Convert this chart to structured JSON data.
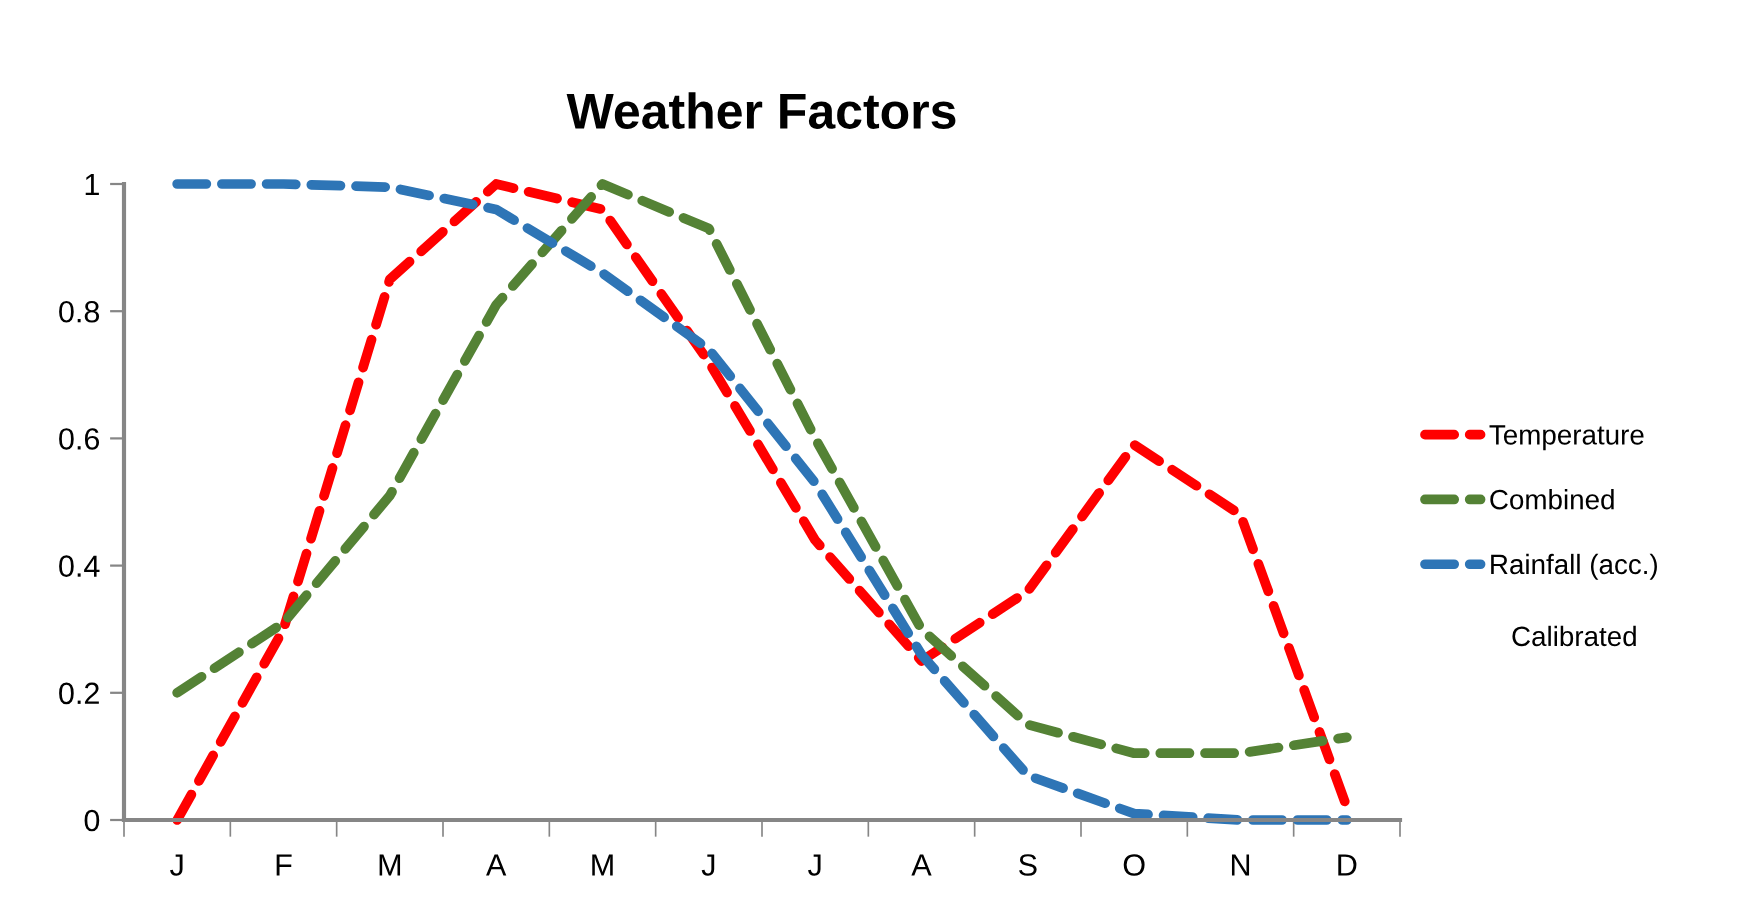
{
  "chart_data": {
    "type": "line",
    "title": "Weather Factors",
    "categories": [
      "J",
      "F",
      "M",
      "A",
      "M",
      "J",
      "J",
      "A",
      "S",
      "O",
      "N",
      "D"
    ],
    "series": [
      {
        "name": "Temperature",
        "color": "#ff0000",
        "values": [
          0,
          0.3,
          0.85,
          1.0,
          0.96,
          0.72,
          0.44,
          0.25,
          0.36,
          0.59,
          0.48,
          0.02
        ]
      },
      {
        "name": "Combined",
        "color": "#548235",
        "values": [
          0.2,
          0.31,
          0.51,
          0.81,
          1.0,
          0.93,
          0.6,
          0.3,
          0.15,
          0.105,
          0.105,
          0.13
        ]
      },
      {
        "name": "Rainfall (acc.)",
        "color": "#2e75b6",
        "values": [
          1.0,
          1.0,
          0.995,
          0.96,
          0.86,
          0.74,
          0.53,
          0.26,
          0.07,
          0.01,
          0.0,
          0.0
        ]
      }
    ],
    "annotations": [
      "Calibrated"
    ],
    "ylim": [
      0,
      1
    ],
    "yticks": [
      0,
      0.2,
      0.4,
      0.6,
      0.8,
      1
    ],
    "legend": "right",
    "line_style": "dashed",
    "marker": "none",
    "grid": false
  }
}
